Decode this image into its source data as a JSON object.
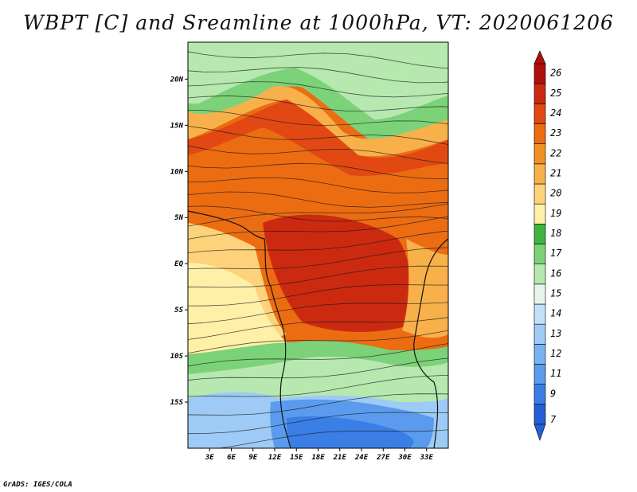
{
  "title": "WBPT [C] and Sreamline at 1000hPa, VT: 2020061206",
  "footer": "GrADS: IGES/COLA",
  "map": {
    "lon_range": [
      0,
      36
    ],
    "lat_range": [
      -20,
      24
    ],
    "lat_labels": [
      "20N",
      "15N",
      "10N",
      "5N",
      "EQ",
      "5S",
      "10S",
      "15S"
    ],
    "lat_values": [
      20,
      15,
      10,
      5,
      0,
      -5,
      -10,
      -15
    ],
    "lon_labels": [
      "3E",
      "6E",
      "9E",
      "12E",
      "15E",
      "18E",
      "21E",
      "24E",
      "27E",
      "30E",
      "33E"
    ],
    "lon_values": [
      3,
      6,
      9,
      12,
      15,
      18,
      21,
      24,
      27,
      30,
      33
    ]
  },
  "colorbar": {
    "labels": [
      "7",
      "9",
      "11",
      "12",
      "13",
      "14",
      "15",
      "16",
      "17",
      "18",
      "19",
      "20",
      "21",
      "22",
      "23",
      "24",
      "25",
      "26"
    ],
    "colors": [
      "#2560d8",
      "#3a7ee6",
      "#5a9bee",
      "#7ab3f2",
      "#9dcbf5",
      "#c2e0f8",
      "#e6f5ec",
      "#b6e8b0",
      "#7cd278",
      "#3fb443",
      "#fff0a8",
      "#fdd27a",
      "#f8b04a",
      "#f29222",
      "#ec6c12",
      "#e24812",
      "#cc2a10",
      "#b01010"
    ]
  }
}
